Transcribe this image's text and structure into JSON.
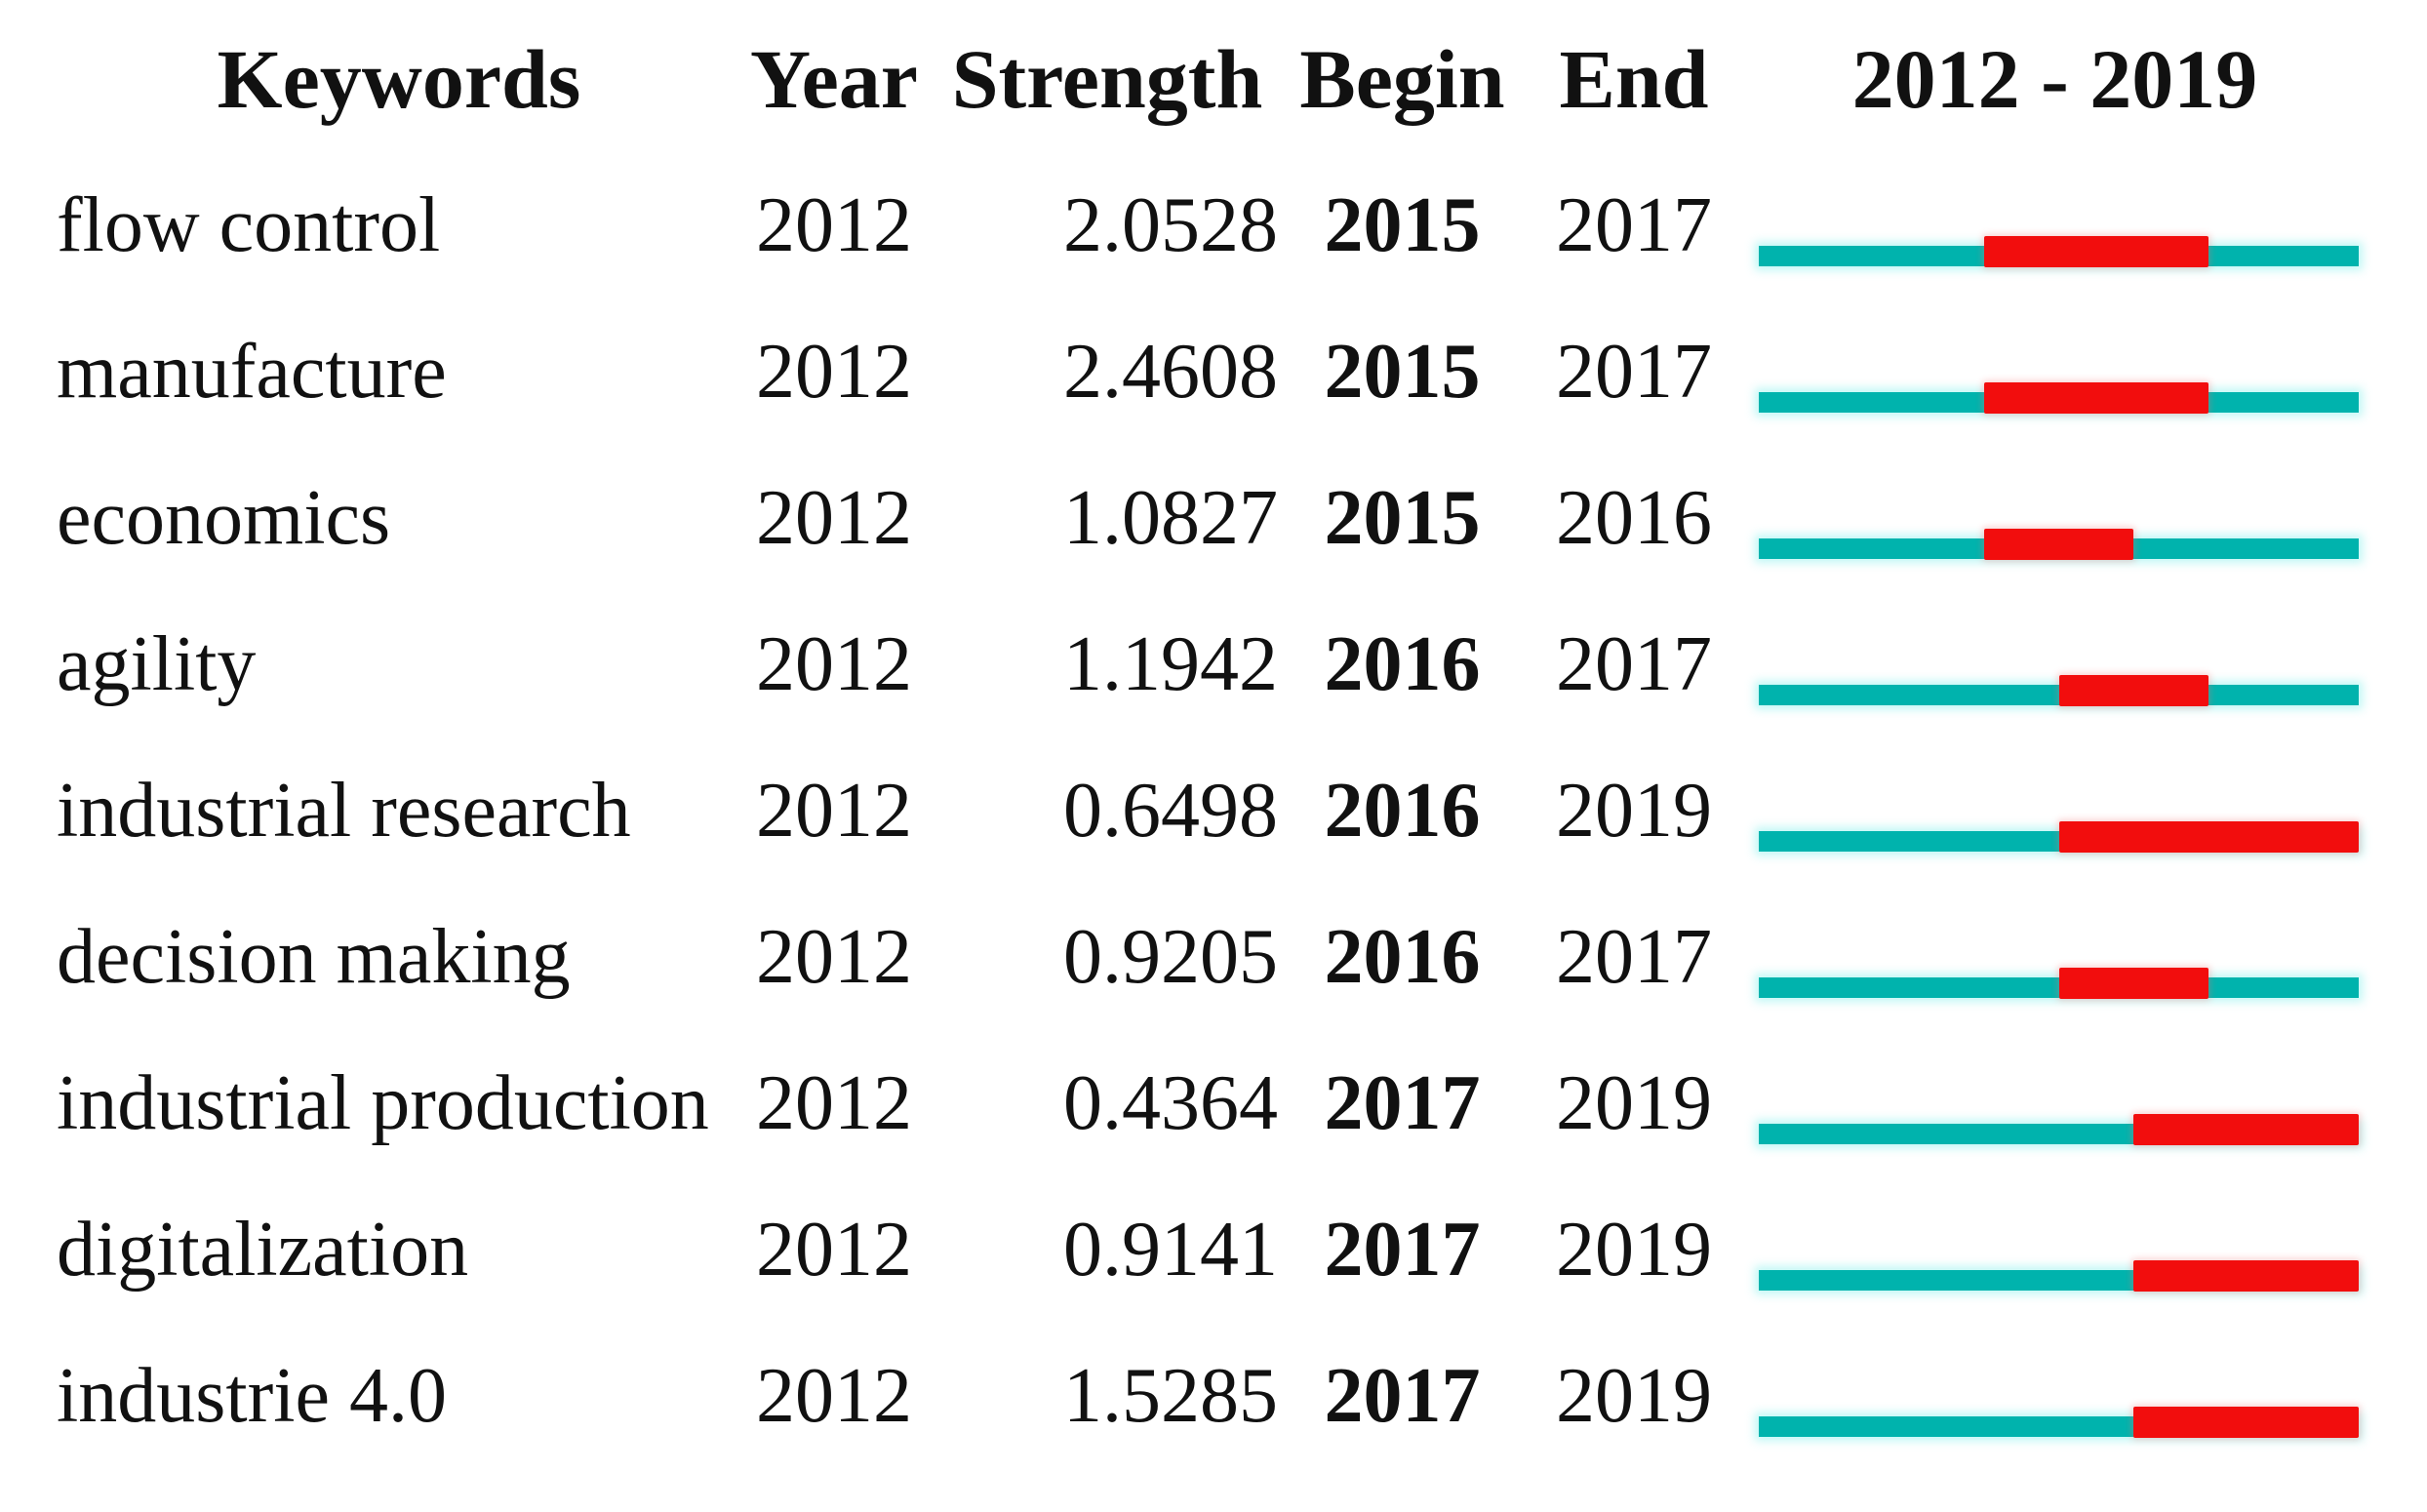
{
  "table": {
    "headers": {
      "keywords": "Keywords",
      "year": "Year",
      "strength": "Strength",
      "begin": "Begin",
      "end": "End",
      "timeline": "2012 - 2019"
    },
    "rows": [
      {
        "keyword": "flow control",
        "year": "2012",
        "strength": "2.0528",
        "begin": "2015",
        "end": "2017"
      },
      {
        "keyword": "manufacture",
        "year": "2012",
        "strength": "2.4608",
        "begin": "2015",
        "end": "2017"
      },
      {
        "keyword": "economics",
        "year": "2012",
        "strength": "1.0827",
        "begin": "2015",
        "end": "2016"
      },
      {
        "keyword": "agility",
        "year": "2012",
        "strength": "1.1942",
        "begin": "2016",
        "end": "2017"
      },
      {
        "keyword": "industrial research",
        "year": "2012",
        "strength": "0.6498",
        "begin": "2016",
        "end": "2019"
      },
      {
        "keyword": "decision making",
        "year": "2012",
        "strength": "0.9205",
        "begin": "2016",
        "end": "2017"
      },
      {
        "keyword": "industrial production",
        "year": "2012",
        "strength": "0.4364",
        "begin": "2017",
        "end": "2019"
      },
      {
        "keyword": "digitalization",
        "year": "2012",
        "strength": "0.9141",
        "begin": "2017",
        "end": "2019"
      },
      {
        "keyword": "industrie 4.0",
        "year": "2012",
        "strength": "1.5285",
        "begin": "2017",
        "end": "2019"
      }
    ]
  },
  "chart_data": {
    "type": "table",
    "columns": [
      "Keywords",
      "Year",
      "Strength",
      "Begin",
      "End",
      "2012 - 2019"
    ],
    "timeline": {
      "start": 2012,
      "end": 2019,
      "header": "2012 - 2019"
    },
    "rows": [
      {
        "keyword": "flow control",
        "year": 2012,
        "strength": 2.0528,
        "begin": 2015,
        "end": 2017
      },
      {
        "keyword": "manufacture",
        "year": 2012,
        "strength": 2.4608,
        "begin": 2015,
        "end": 2017
      },
      {
        "keyword": "economics",
        "year": 2012,
        "strength": 1.0827,
        "begin": 2015,
        "end": 2016
      },
      {
        "keyword": "agility",
        "year": 2012,
        "strength": 1.1942,
        "begin": 2016,
        "end": 2017
      },
      {
        "keyword": "industrial research",
        "year": 2012,
        "strength": 0.6498,
        "begin": 2016,
        "end": 2019
      },
      {
        "keyword": "decision making",
        "year": 2012,
        "strength": 0.9205,
        "begin": 2016,
        "end": 2017
      },
      {
        "keyword": "industrial production",
        "year": 2012,
        "strength": 0.4364,
        "begin": 2017,
        "end": 2019
      },
      {
        "keyword": "digitalization",
        "year": 2012,
        "strength": 0.9141,
        "begin": 2017,
        "end": 2019
      },
      {
        "keyword": "industrie 4.0",
        "year": 2012,
        "strength": 1.5285,
        "begin": 2017,
        "end": 2019
      }
    ],
    "colors": {
      "track_teal": "#00b3ad",
      "burst_red": "#f20d0d"
    },
    "legend_semantics": "teal = full 2012-2019 span, red = citation burst period (Begin to End inclusive)"
  }
}
